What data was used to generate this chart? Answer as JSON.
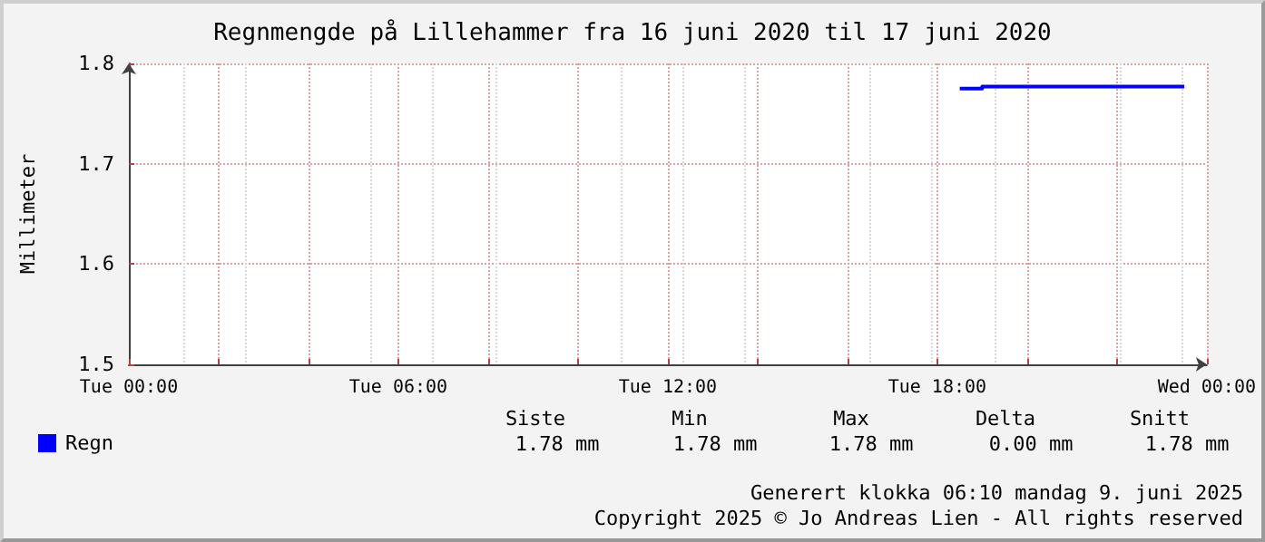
{
  "chart_data": {
    "type": "step",
    "title": "Regnmengde på Lillehammer fra 16 juni 2020 til 17 juni 2020",
    "ylabel": "Millimeter",
    "x": [
      "2020-06-16T18:30",
      "2020-06-16T19:00",
      "2020-06-16T23:30"
    ],
    "series": [
      {
        "name": "Regn",
        "color": "#0000ff",
        "values": [
          1.775,
          1.777,
          1.777
        ]
      }
    ],
    "xlim": [
      "2020-06-16T00:00",
      "2020-06-17T00:00"
    ],
    "xticks": [
      {
        "value": "2020-06-16T00:00",
        "label": "Tue 00:00"
      },
      {
        "value": "2020-06-16T02:00",
        "label": null
      },
      {
        "value": "2020-06-16T04:00",
        "label": null
      },
      {
        "value": "2020-06-16T06:00",
        "label": "Tue 06:00"
      },
      {
        "value": "2020-06-16T08:00",
        "label": null
      },
      {
        "value": "2020-06-16T10:00",
        "label": null
      },
      {
        "value": "2020-06-16T12:00",
        "label": "Tue 12:00"
      },
      {
        "value": "2020-06-16T14:00",
        "label": null
      },
      {
        "value": "2020-06-16T16:00",
        "label": null
      },
      {
        "value": "2020-06-16T18:00",
        "label": "Tue 18:00"
      },
      {
        "value": "2020-06-16T20:00",
        "label": null
      },
      {
        "value": "2020-06-16T22:00",
        "label": null
      },
      {
        "value": "2020-06-17T00:00",
        "label": "Wed 00:00"
      }
    ],
    "ylim": [
      1.5,
      1.8
    ],
    "yticks": [
      1.5,
      1.6,
      1.7,
      1.8
    ],
    "grid": true,
    "legend": "bottom left",
    "marker": "none",
    "line_style": "solid",
    "annotations": [
      "Siste",
      "Min",
      "Max",
      "Delta",
      "Snitt",
      "1.78 mm",
      "1.78 mm",
      "1.78 mm",
      "0.00 mm",
      "1.78 mm",
      "Generert klokka 06:10 mandag 9. juni 2025",
      "Copyright 2025 © Jo Andreas Lien - All rights reserved"
    ]
  }
}
